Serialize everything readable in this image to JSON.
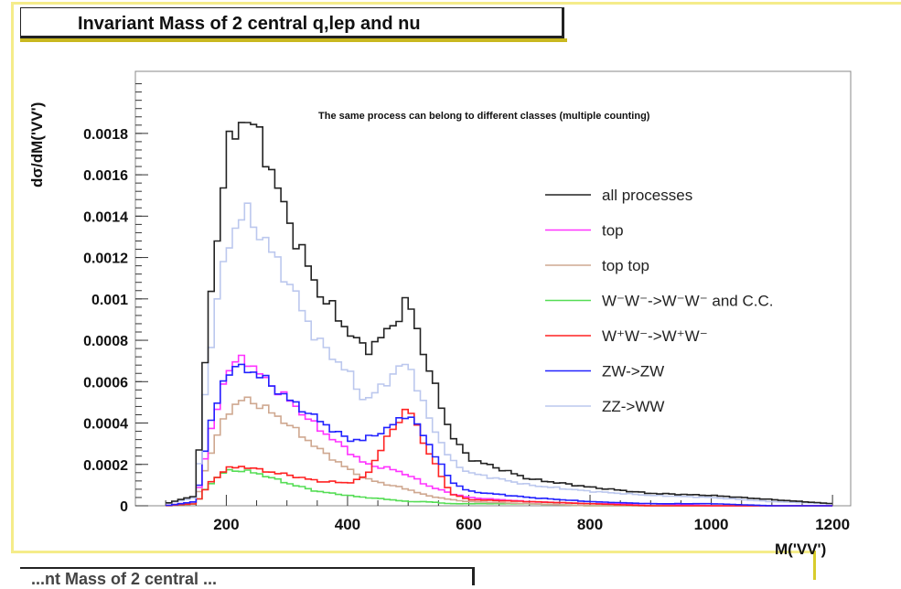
{
  "page": {
    "title": "Invariant Mass of 2 central q,lep and nu",
    "next_title": "...nt Mass of 2 central ..."
  },
  "chart_data": {
    "type": "line",
    "title": "Invariant Mass of 2 central q,lep and nu",
    "xlabel": "M('VV')",
    "ylabel": "dσ/dM('VV')",
    "annotation": "The same process can belong to different classes (multiple counting)",
    "xlim": [
      50,
      1230
    ],
    "ylim": [
      0,
      0.0021
    ],
    "xticks": [
      200,
      400,
      600,
      800,
      1000,
      1200
    ],
    "xtick_labels": [
      "200",
      "400",
      "600",
      "800",
      "1000",
      "1200"
    ],
    "yticks": [
      0,
      0.0002,
      0.0004,
      0.0006,
      0.0008,
      0.001,
      0.0012,
      0.0014,
      0.0016,
      0.0018
    ],
    "ytick_labels": [
      "0",
      "0.0002",
      "0.0004",
      "0.0006",
      "0.0008",
      "0.001",
      "0.0012",
      "0.0014",
      "0.0016",
      "0.0018"
    ],
    "legend_position": "right",
    "x": [
      100,
      150,
      170,
      200,
      230,
      260,
      300,
      350,
      400,
      430,
      470,
      500,
      530,
      570,
      600,
      700,
      800,
      900,
      1000,
      1100,
      1200
    ],
    "series": [
      {
        "name": "all processes",
        "color": "#222222",
        "values": [
          1e-05,
          5e-05,
          0.0009,
          0.0017,
          0.0019,
          0.00175,
          0.0014,
          0.00105,
          0.00085,
          0.00075,
          0.00085,
          0.001,
          0.0007,
          0.00035,
          0.00023,
          0.00013,
          9e-05,
          6e-05,
          5e-05,
          3e-05,
          1e-05
        ]
      },
      {
        "name": "top",
        "color": "#ff33ff",
        "values": [
          0.0,
          2e-05,
          0.0003,
          0.00065,
          0.00072,
          0.00062,
          0.00052,
          0.00038,
          0.00027,
          0.0002,
          0.00018,
          0.00015,
          0.0001,
          6e-05,
          4e-05,
          2e-05,
          1e-05,
          1e-05,
          0.0,
          0.0,
          0.0
        ]
      },
      {
        "name": "top top",
        "color": "#cfa890",
        "values": [
          0.0,
          2e-05,
          0.00022,
          0.00045,
          0.00052,
          0.00048,
          0.0004,
          0.00028,
          0.00018,
          0.00013,
          0.0001,
          8e-05,
          5e-05,
          3e-05,
          2e-05,
          1e-05,
          0.0,
          0.0,
          0.0,
          0.0,
          0.0
        ]
      },
      {
        "name": "W⁻W⁻->W⁻W⁻ and C.C.",
        "color": "#55dd55",
        "values": [
          0.0,
          1e-05,
          0.0001,
          0.00017,
          0.00017,
          0.00015,
          0.00011,
          7e-05,
          5e-05,
          4e-05,
          3e-05,
          2e-05,
          2e-05,
          1e-05,
          1e-05,
          1e-05,
          0.0,
          0.0,
          0.0,
          0.0,
          0.0
        ]
      },
      {
        "name": "W⁺W⁻->W⁺W⁻",
        "color": "#ff2222",
        "values": [
          0.0,
          1e-05,
          0.0001,
          0.00018,
          0.00019,
          0.00017,
          0.00015,
          0.00012,
          0.00011,
          0.00014,
          0.00035,
          0.00048,
          0.00028,
          6e-05,
          3e-05,
          2e-05,
          1e-05,
          0.0,
          0.0,
          0.0,
          0.0
        ]
      },
      {
        "name": "ZW->ZW",
        "color": "#2222ff",
        "values": [
          0.0,
          2e-05,
          0.00035,
          0.00065,
          0.00067,
          0.00062,
          0.00052,
          0.00042,
          0.00032,
          0.00032,
          0.00038,
          0.00045,
          0.00032,
          0.00012,
          7e-05,
          4e-05,
          2e-05,
          1e-05,
          1e-05,
          0.0,
          0.0
        ]
      },
      {
        "name": "ZZ->WW",
        "color": "#bcc8ee",
        "values": [
          1e-05,
          4e-05,
          0.0007,
          0.00125,
          0.00143,
          0.0013,
          0.0011,
          0.0008,
          0.00065,
          0.0005,
          0.00062,
          0.0007,
          0.00045,
          0.00022,
          0.00016,
          0.0001,
          7e-05,
          5e-05,
          4e-05,
          2e-05,
          1e-05
        ]
      }
    ]
  }
}
